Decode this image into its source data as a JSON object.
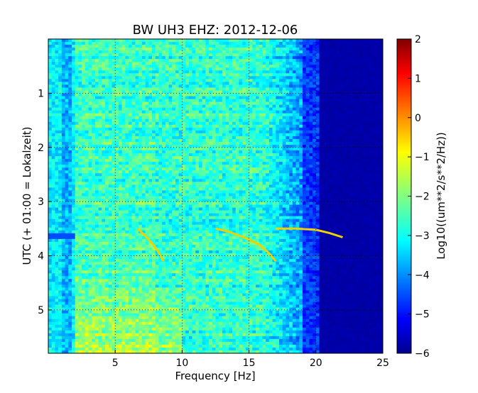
{
  "chart_data": {
    "type": "heatmap",
    "title": "BW UH3 EHZ: 2012-12-06",
    "xlabel": "Frequency [Hz]",
    "ylabel": "UTC (+ 01:00 = Lokalzeit)",
    "xlim": [
      0,
      25
    ],
    "ylim": [
      5.8,
      0
    ],
    "xticks": [
      5,
      10,
      15,
      20,
      25
    ],
    "yticks": [
      1,
      2,
      3,
      4,
      5
    ],
    "grid": true,
    "colormap": "jet",
    "colorbar": {
      "label": "Log10((um**2/s**2/Hz))",
      "range": [
        -6,
        2
      ],
      "ticks": [
        -6,
        -5,
        -4,
        -3,
        -2,
        -1,
        0,
        1,
        2
      ]
    },
    "colors": {
      "background_high_freq": "#00008f",
      "dominant_band": "#1a9fff",
      "low_freq_band": "#5fe0a0",
      "narrow_line": "#f0d000",
      "narrow_line_peak": "#ff3000"
    },
    "features": {
      "high_frequency_cutoff_hz": 20,
      "narrowband_tracks": [
        {
          "x": [
            6.7,
            7.2,
            7.8,
            8.2,
            8.6
          ],
          "y": [
            3.5,
            3.62,
            3.78,
            3.92,
            4.1
          ]
        },
        {
          "x": [
            12.5,
            13.4,
            14.2,
            15.0,
            15.8,
            16.4,
            17.0
          ],
          "y": [
            3.5,
            3.55,
            3.62,
            3.7,
            3.8,
            3.93,
            4.1
          ]
        },
        {
          "x": [
            17.0,
            18.5,
            20.0,
            21.0,
            22.0
          ],
          "y": [
            3.5,
            3.5,
            3.52,
            3.58,
            3.66
          ]
        }
      ],
      "low_freq_dark_burst": {
        "x": [
          0,
          2
        ],
        "y": [
          3.58,
          3.7
        ]
      }
    }
  }
}
